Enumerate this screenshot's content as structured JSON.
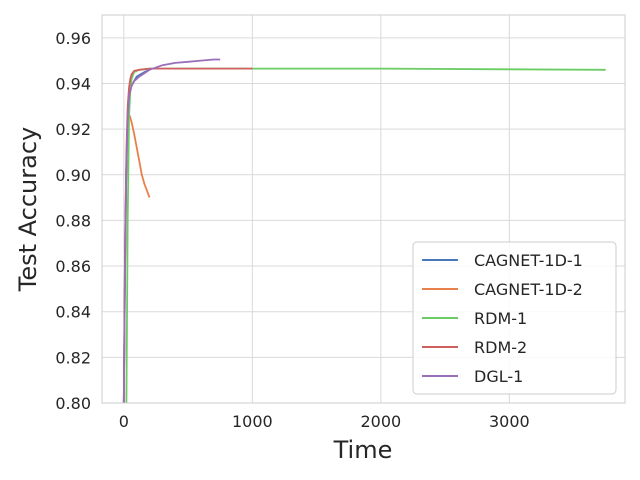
{
  "chart_data": {
    "type": "line",
    "title": "",
    "xlabel": "Time",
    "ylabel": "Test Accuracy",
    "xlim": [
      -170,
      3900
    ],
    "ylim": [
      0.8,
      0.97
    ],
    "xticks": [
      0,
      1000,
      2000,
      3000
    ],
    "xtick_labels": [
      "0",
      "1000",
      "2000",
      "3000"
    ],
    "yticks": [
      0.8,
      0.82,
      0.84,
      0.86,
      0.88,
      0.9,
      0.92,
      0.94,
      0.96
    ],
    "ytick_labels": [
      "0.80",
      "0.82",
      "0.84",
      "0.86",
      "0.88",
      "0.90",
      "0.92",
      "0.94",
      "0.96"
    ],
    "grid": true,
    "legend_position": "lower-right",
    "series": [
      {
        "name": "CAGNET-1D-1",
        "color": "#4878b8",
        "x": [
          0,
          10,
          20,
          30,
          40,
          50,
          60,
          80,
          100,
          130,
          160,
          200
        ],
        "y": [
          0.8,
          0.87,
          0.905,
          0.922,
          0.932,
          0.937,
          0.939,
          0.941,
          0.943,
          0.944,
          0.945,
          0.946
        ]
      },
      {
        "name": "CAGNET-1D-2",
        "color": "#e8804a",
        "x": [
          0,
          10,
          20,
          30,
          45,
          60,
          80,
          100,
          120,
          140,
          160,
          180,
          200
        ],
        "y": [
          0.8,
          0.86,
          0.905,
          0.925,
          0.926,
          0.923,
          0.918,
          0.912,
          0.906,
          0.9,
          0.896,
          0.893,
          0.89
        ]
      },
      {
        "name": "RDM-1",
        "color": "#6bcc64",
        "x": [
          20,
          30,
          40,
          50,
          60,
          80,
          120,
          200,
          500,
          1000,
          2000,
          3000,
          3750
        ],
        "y": [
          0.8,
          0.88,
          0.925,
          0.937,
          0.942,
          0.945,
          0.946,
          0.9465,
          0.9465,
          0.9465,
          0.9465,
          0.9462,
          0.946
        ]
      },
      {
        "name": "RDM-2",
        "color": "#d0605e",
        "x": [
          0,
          10,
          20,
          30,
          40,
          50,
          60,
          80,
          120,
          200,
          500,
          1000
        ],
        "y": [
          0.8,
          0.87,
          0.91,
          0.93,
          0.938,
          0.942,
          0.944,
          0.9455,
          0.946,
          0.9465,
          0.9465,
          0.9465
        ]
      },
      {
        "name": "DGL-1",
        "color": "#9b6fb8",
        "x": [
          0,
          10,
          20,
          30,
          40,
          60,
          80,
          120,
          160,
          200,
          300,
          400,
          500,
          600,
          700,
          750
        ],
        "y": [
          0.8,
          0.86,
          0.905,
          0.925,
          0.934,
          0.939,
          0.941,
          0.943,
          0.9445,
          0.946,
          0.948,
          0.949,
          0.9495,
          0.95,
          0.9505,
          0.9505
        ]
      }
    ]
  }
}
